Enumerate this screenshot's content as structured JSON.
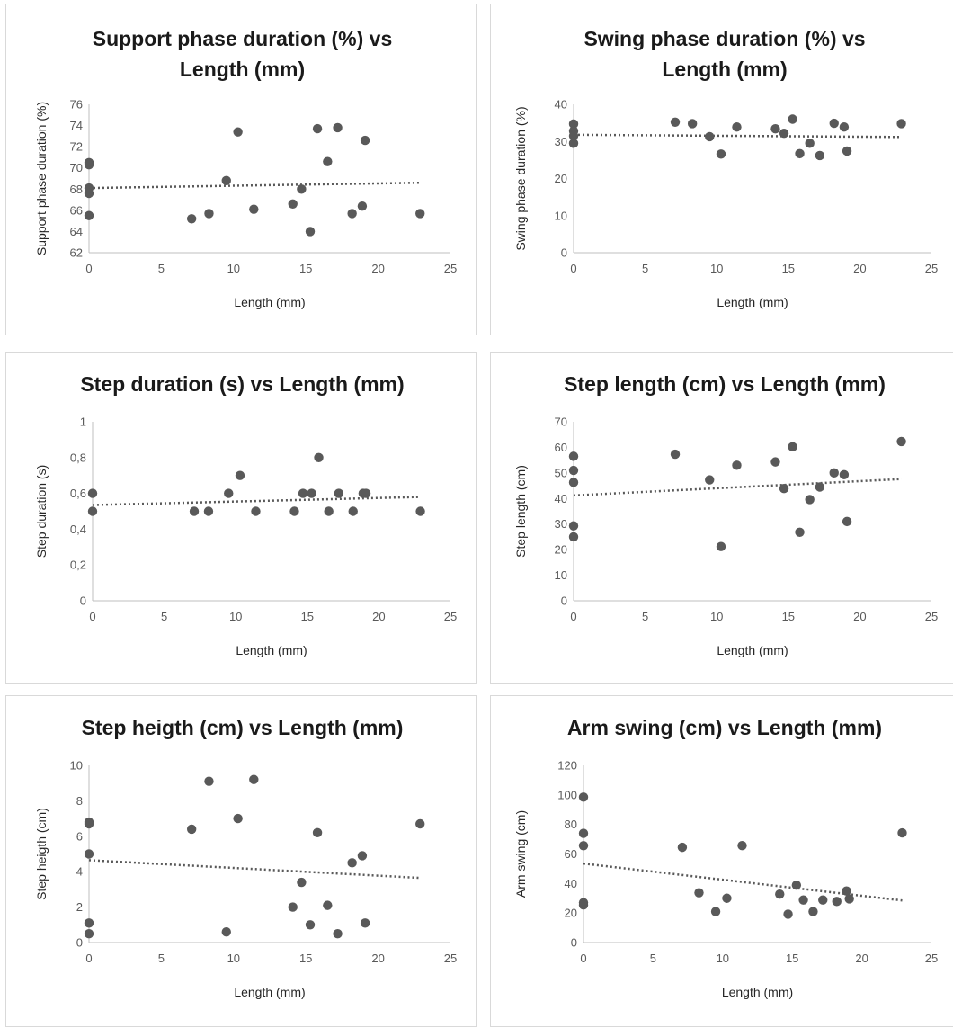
{
  "colors": {
    "marker": "#595959",
    "trendline": "#595959",
    "axis": "#bfbfbf",
    "text": "#1a1a1a"
  },
  "chart_data": [
    {
      "type": "scatter",
      "title_lines": [
        "Support phase duration (%) vs",
        "Length (mm)"
      ],
      "xlabel": "Length (mm)",
      "ylabel": "Support phase duration (%)",
      "xlim": [
        0,
        25
      ],
      "ylim": [
        62,
        76
      ],
      "xticks": [
        0,
        5,
        10,
        15,
        20,
        25
      ],
      "xtick_labels": [
        "0",
        "5",
        "10",
        "15",
        "20",
        "25"
      ],
      "yticks": [
        62,
        64,
        66,
        68,
        70,
        72,
        74,
        76
      ],
      "ytick_labels": [
        "62",
        "64",
        "66",
        "68",
        "70",
        "72",
        "74",
        "76"
      ],
      "grid": false,
      "trendline": true,
      "points": [
        [
          0,
          70.5
        ],
        [
          0,
          70.3
        ],
        [
          0,
          68.1
        ],
        [
          0,
          67.6
        ],
        [
          0,
          65.5
        ],
        [
          7.1,
          65.2
        ],
        [
          8.3,
          65.7
        ],
        [
          9.5,
          68.8
        ],
        [
          10.3,
          73.4
        ],
        [
          11.4,
          66.1
        ],
        [
          14.1,
          66.6
        ],
        [
          14.7,
          68.0
        ],
        [
          15.3,
          64.0
        ],
        [
          15.8,
          73.7
        ],
        [
          16.5,
          70.6
        ],
        [
          17.2,
          73.8
        ],
        [
          18.2,
          65.7
        ],
        [
          18.9,
          66.4
        ],
        [
          19.1,
          72.6
        ],
        [
          22.9,
          65.7
        ]
      ],
      "trend_line": [
        [
          0,
          68.1
        ],
        [
          22.9,
          68.6
        ]
      ]
    },
    {
      "type": "scatter",
      "title_lines": [
        "Swing phase duration (%) vs",
        "Length (mm)"
      ],
      "xlabel": "Length (mm)",
      "ylabel": "Swing phase duration (%)",
      "xlim": [
        0,
        25
      ],
      "ylim": [
        0,
        40
      ],
      "xticks": [
        0,
        5,
        10,
        15,
        20,
        25
      ],
      "xtick_labels": [
        "0",
        "5",
        "10",
        "15",
        "20",
        "25"
      ],
      "yticks": [
        0,
        10,
        20,
        30,
        40
      ],
      "ytick_labels": [
        "0",
        "10",
        "20",
        "30",
        "40"
      ],
      "grid": false,
      "trendline": true,
      "points": [
        [
          0,
          34.7
        ],
        [
          0,
          32.8
        ],
        [
          0,
          31.5
        ],
        [
          0,
          29.5
        ],
        [
          7.1,
          35.2
        ],
        [
          8.3,
          34.8
        ],
        [
          9.5,
          31.3
        ],
        [
          10.3,
          26.6
        ],
        [
          11.4,
          33.9
        ],
        [
          14.1,
          33.4
        ],
        [
          14.7,
          32.2
        ],
        [
          15.3,
          36.0
        ],
        [
          15.8,
          26.7
        ],
        [
          16.5,
          29.5
        ],
        [
          17.2,
          26.2
        ],
        [
          18.2,
          34.9
        ],
        [
          18.9,
          33.9
        ],
        [
          19.1,
          27.4
        ],
        [
          22.9,
          34.8
        ]
      ],
      "trend_line": [
        [
          0,
          31.8
        ],
        [
          22.9,
          31.2
        ]
      ]
    },
    {
      "type": "scatter",
      "title_lines": [
        "Step duration (s) vs Length (mm)"
      ],
      "xlabel": "Length (mm)",
      "ylabel": "Step duration (s)",
      "xlim": [
        0,
        25
      ],
      "ylim": [
        0,
        1
      ],
      "xticks": [
        0,
        5,
        10,
        15,
        20,
        25
      ],
      "xtick_labels": [
        "0",
        "5",
        "10",
        "15",
        "20",
        "25"
      ],
      "yticks": [
        0,
        0.2,
        0.4,
        0.6,
        0.8,
        1
      ],
      "ytick_labels": [
        "0",
        "0,2",
        "0,4",
        "0,6",
        "0,8",
        "1"
      ],
      "grid": false,
      "trendline": true,
      "points": [
        [
          0,
          0.6
        ],
        [
          0,
          0.5
        ],
        [
          7.1,
          0.5
        ],
        [
          8.1,
          0.5
        ],
        [
          9.5,
          0.6
        ],
        [
          10.3,
          0.7
        ],
        [
          11.4,
          0.5
        ],
        [
          14.1,
          0.5
        ],
        [
          14.7,
          0.6
        ],
        [
          15.3,
          0.6
        ],
        [
          15.8,
          0.8
        ],
        [
          16.5,
          0.5
        ],
        [
          17.2,
          0.6
        ],
        [
          18.2,
          0.5
        ],
        [
          18.9,
          0.6
        ],
        [
          19.1,
          0.6
        ],
        [
          22.9,
          0.5
        ]
      ],
      "trend_line": [
        [
          0,
          0.535
        ],
        [
          22.9,
          0.58
        ]
      ]
    },
    {
      "type": "scatter",
      "title_lines": [
        "Step length (cm) vs Length (mm)"
      ],
      "xlabel": "Length (mm)",
      "ylabel": "Step length (cm)",
      "xlim": [
        0,
        25
      ],
      "ylim": [
        0,
        70
      ],
      "xticks": [
        0,
        5,
        10,
        15,
        20,
        25
      ],
      "xtick_labels": [
        "0",
        "5",
        "10",
        "15",
        "20",
        "25"
      ],
      "yticks": [
        0,
        10,
        20,
        30,
        40,
        50,
        60,
        70
      ],
      "ytick_labels": [
        "0",
        "10",
        "20",
        "30",
        "40",
        "50",
        "60",
        "70"
      ],
      "grid": false,
      "trendline": true,
      "points": [
        [
          0,
          56.5
        ],
        [
          0,
          51.0
        ],
        [
          0,
          46.3
        ],
        [
          0,
          29.3
        ],
        [
          0,
          25.0
        ],
        [
          7.1,
          57.3
        ],
        [
          9.5,
          47.3
        ],
        [
          10.3,
          21.2
        ],
        [
          11.4,
          53.0
        ],
        [
          14.1,
          54.3
        ],
        [
          14.7,
          43.9
        ],
        [
          15.3,
          60.2
        ],
        [
          15.8,
          26.8
        ],
        [
          16.5,
          39.6
        ],
        [
          17.2,
          44.5
        ],
        [
          18.2,
          50.0
        ],
        [
          18.9,
          49.3
        ],
        [
          19.1,
          31.0
        ],
        [
          22.9,
          62.3
        ]
      ],
      "trend_line": [
        [
          0,
          41.2
        ],
        [
          22.9,
          47.6
        ]
      ]
    },
    {
      "type": "scatter",
      "title_lines": [
        "Step heigth (cm) vs Length (mm)"
      ],
      "xlabel": "Length (mm)",
      "ylabel": "Step heigth (cm)",
      "xlim": [
        0,
        25
      ],
      "ylim": [
        0,
        10
      ],
      "xticks": [
        0,
        5,
        10,
        15,
        20,
        25
      ],
      "xtick_labels": [
        "0",
        "5",
        "10",
        "15",
        "20",
        "25"
      ],
      "yticks": [
        0,
        2,
        4,
        6,
        8,
        10
      ],
      "ytick_labels": [
        "0",
        "2",
        "4",
        "6",
        "8",
        "10"
      ],
      "grid": false,
      "trendline": true,
      "points": [
        [
          0,
          6.8
        ],
        [
          0,
          6.7
        ],
        [
          0,
          5.0
        ],
        [
          0,
          1.1
        ],
        [
          0,
          0.5
        ],
        [
          7.1,
          6.4
        ],
        [
          8.3,
          9.1
        ],
        [
          9.5,
          0.6
        ],
        [
          10.3,
          7.0
        ],
        [
          11.4,
          9.2
        ],
        [
          14.1,
          2.0
        ],
        [
          14.7,
          3.4
        ],
        [
          15.3,
          1.0
        ],
        [
          15.8,
          6.2
        ],
        [
          16.5,
          2.1
        ],
        [
          17.2,
          0.5
        ],
        [
          18.2,
          4.5
        ],
        [
          18.9,
          4.9
        ],
        [
          19.1,
          1.1
        ],
        [
          22.9,
          6.7
        ]
      ],
      "trend_line": [
        [
          0,
          4.65
        ],
        [
          22.9,
          3.65
        ]
      ]
    },
    {
      "type": "scatter",
      "title_lines": [
        "Arm swing (cm) vs Length (mm)"
      ],
      "xlabel": "Length (mm)",
      "ylabel": "Arm swing (cm)",
      "xlim": [
        0,
        25
      ],
      "ylim": [
        0,
        120
      ],
      "xticks": [
        0,
        5,
        10,
        15,
        20,
        25
      ],
      "xtick_labels": [
        "0",
        "5",
        "10",
        "15",
        "20",
        "25"
      ],
      "yticks": [
        0,
        20,
        40,
        60,
        80,
        100,
        120
      ],
      "ytick_labels": [
        "0",
        "20",
        "40",
        "60",
        "80",
        "100",
        "120"
      ],
      "grid": false,
      "trendline": true,
      "points": [
        [
          0,
          98.5
        ],
        [
          0,
          74.0
        ],
        [
          0,
          65.6
        ],
        [
          0,
          27.0
        ],
        [
          0,
          25.5
        ],
        [
          7.1,
          64.5
        ],
        [
          8.3,
          33.7
        ],
        [
          9.5,
          21.0
        ],
        [
          10.3,
          30.0
        ],
        [
          11.4,
          65.7
        ],
        [
          14.1,
          32.8
        ],
        [
          14.7,
          19.2
        ],
        [
          15.3,
          38.9
        ],
        [
          15.8,
          28.8
        ],
        [
          16.5,
          21.0
        ],
        [
          17.2,
          28.8
        ],
        [
          18.2,
          27.8
        ],
        [
          18.9,
          34.9
        ],
        [
          19.1,
          29.6
        ],
        [
          22.9,
          74.3
        ]
      ],
      "trend_line": [
        [
          0,
          53.5
        ],
        [
          22.9,
          28.5
        ]
      ]
    }
  ]
}
